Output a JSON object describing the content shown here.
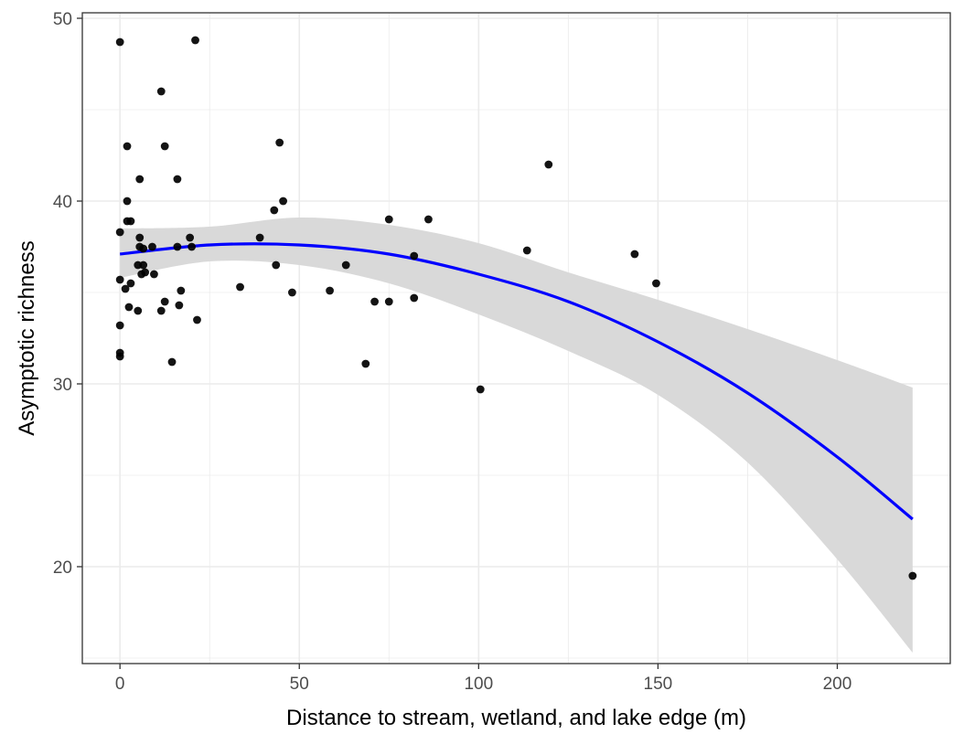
{
  "chart_data": {
    "type": "scatter",
    "title": "",
    "xlabel": "Distance to stream, wetland, and lake edge (m)",
    "ylabel": "Asymptotic richness",
    "xlim": [
      -10.5,
      231.5
    ],
    "ylim": [
      14.7,
      50.3
    ],
    "x_ticks": [
      0,
      50,
      100,
      150,
      200
    ],
    "y_ticks": [
      20,
      30,
      40,
      50
    ],
    "x_minor": [
      25,
      75,
      125,
      175
    ],
    "y_minor": [
      15,
      25,
      35,
      45
    ],
    "grid": true,
    "colors": {
      "points": "#000000",
      "smooth_line": "#0000ff",
      "ribbon": "#d9d9d9",
      "grid": "#ebebeb",
      "panel_border": "#333333"
    },
    "points": [
      {
        "x": 0,
        "y": 48.7
      },
      {
        "x": 21,
        "y": 48.8
      },
      {
        "x": 11.5,
        "y": 46.0
      },
      {
        "x": 2,
        "y": 43.0
      },
      {
        "x": 12.5,
        "y": 43.0
      },
      {
        "x": 44.5,
        "y": 43.2
      },
      {
        "x": 119.5,
        "y": 42.0
      },
      {
        "x": 5.5,
        "y": 41.2
      },
      {
        "x": 16,
        "y": 41.2
      },
      {
        "x": 2,
        "y": 40.0
      },
      {
        "x": 45.5,
        "y": 40.0
      },
      {
        "x": 43,
        "y": 39.5
      },
      {
        "x": 2,
        "y": 38.9
      },
      {
        "x": 3,
        "y": 38.9
      },
      {
        "x": 75,
        "y": 39.0
      },
      {
        "x": 86,
        "y": 39.0
      },
      {
        "x": 0,
        "y": 38.3
      },
      {
        "x": 19.5,
        "y": 38.0
      },
      {
        "x": 39,
        "y": 38.0
      },
      {
        "x": 5.5,
        "y": 38.0
      },
      {
        "x": 5.5,
        "y": 37.5
      },
      {
        "x": 6.5,
        "y": 37.4
      },
      {
        "x": 9,
        "y": 37.5
      },
      {
        "x": 16,
        "y": 37.5
      },
      {
        "x": 20,
        "y": 37.5
      },
      {
        "x": 113.5,
        "y": 37.3
      },
      {
        "x": 143.5,
        "y": 37.1
      },
      {
        "x": 82,
        "y": 37.0
      },
      {
        "x": 5,
        "y": 36.5
      },
      {
        "x": 6.5,
        "y": 36.5
      },
      {
        "x": 43.5,
        "y": 36.5
      },
      {
        "x": 63,
        "y": 36.5
      },
      {
        "x": 7,
        "y": 36.1
      },
      {
        "x": 9.5,
        "y": 36.0
      },
      {
        "x": 6,
        "y": 36.0
      },
      {
        "x": 0,
        "y": 35.7
      },
      {
        "x": 3,
        "y": 35.5
      },
      {
        "x": 149.5,
        "y": 35.5
      },
      {
        "x": 1.5,
        "y": 35.2
      },
      {
        "x": 33.5,
        "y": 35.3
      },
      {
        "x": 17,
        "y": 35.1
      },
      {
        "x": 58.5,
        "y": 35.1
      },
      {
        "x": 48,
        "y": 35.0
      },
      {
        "x": 82,
        "y": 34.7
      },
      {
        "x": 12.5,
        "y": 34.5
      },
      {
        "x": 71,
        "y": 34.5
      },
      {
        "x": 75,
        "y": 34.5
      },
      {
        "x": 2.5,
        "y": 34.2
      },
      {
        "x": 16.5,
        "y": 34.3
      },
      {
        "x": 5,
        "y": 34.0
      },
      {
        "x": 11.5,
        "y": 34.0
      },
      {
        "x": 21.5,
        "y": 33.5
      },
      {
        "x": 0,
        "y": 33.2
      },
      {
        "x": 0,
        "y": 31.7
      },
      {
        "x": 0,
        "y": 31.5
      },
      {
        "x": 14.5,
        "y": 31.2
      },
      {
        "x": 68.5,
        "y": 31.1
      },
      {
        "x": 100.5,
        "y": 29.7
      },
      {
        "x": 221,
        "y": 19.5
      }
    ],
    "smooth": {
      "x": [
        0,
        25,
        50,
        75,
        100,
        125,
        150,
        175,
        200,
        221
      ],
      "fit": [
        37.1,
        37.6,
        37.6,
        37.1,
        36.0,
        34.5,
        32.3,
        29.5,
        26.0,
        22.6
      ],
      "lower": [
        35.8,
        36.7,
        36.5,
        35.5,
        33.8,
        31.8,
        29.4,
        25.7,
        20.4,
        15.3
      ],
      "upper": [
        38.5,
        38.6,
        39.1,
        38.7,
        37.7,
        36.1,
        34.6,
        33.0,
        31.3,
        29.8
      ]
    }
  }
}
